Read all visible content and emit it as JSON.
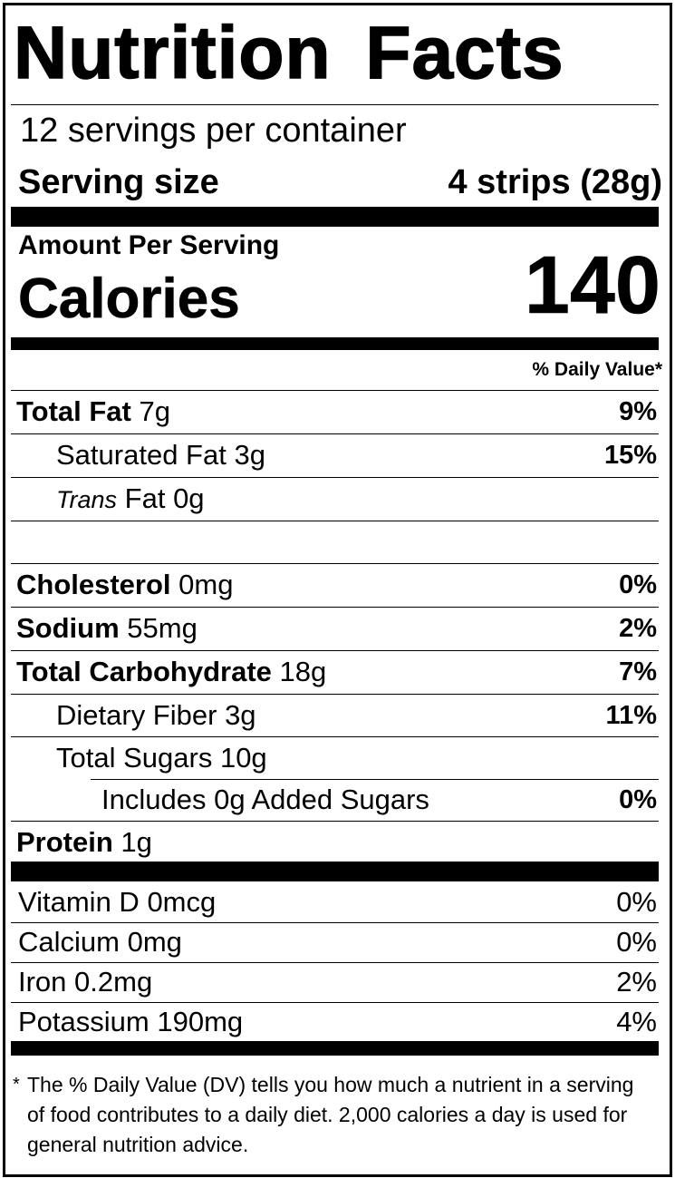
{
  "title": "Nutrition Facts",
  "servings_per_container": "12 servings per container",
  "serving_size": {
    "label": "Serving size",
    "value": "4 strips (28g)"
  },
  "amount_per_serving": "Amount Per Serving",
  "calories": {
    "label": "Calories",
    "value": "140"
  },
  "daily_value_header": "% Daily Value*",
  "nutrients": [
    {
      "name": "Total Fat",
      "amount": "7g",
      "dv": "9%"
    },
    {
      "name": "Saturated Fat",
      "amount": "3g",
      "dv": "15%"
    },
    {
      "name_italic": "Trans",
      "name": "Fat",
      "amount": "0g",
      "dv": ""
    },
    {
      "name": "Cholesterol",
      "amount": "0mg",
      "dv": "0%"
    },
    {
      "name": "Sodium",
      "amount": "55mg",
      "dv": "2%"
    },
    {
      "name": "Total Carbohydrate",
      "amount": "18g",
      "dv": "7%"
    },
    {
      "name": "Dietary Fiber",
      "amount": "3g",
      "dv": "11%"
    },
    {
      "name": "Total Sugars",
      "amount": "10g",
      "dv": ""
    },
    {
      "name": "Includes 0g Added Sugars",
      "amount": "",
      "dv": "0%"
    },
    {
      "name": "Protein",
      "amount": "1g",
      "dv": ""
    }
  ],
  "vitamins": [
    {
      "name": "Vitamin D",
      "amount": "0mcg",
      "dv": "0%"
    },
    {
      "name": "Calcium",
      "amount": "0mg",
      "dv": "0%"
    },
    {
      "name": "Iron",
      "amount": "0.2mg",
      "dv": "2%"
    },
    {
      "name": "Potassium",
      "amount": "190mg",
      "dv": "4%"
    }
  ],
  "footnote": {
    "star": "*",
    "text": "The % Daily Value (DV) tells you how much a nutrient in a serving of food contributes to a daily diet. 2,000 calories a day is used for general nutrition advice."
  }
}
